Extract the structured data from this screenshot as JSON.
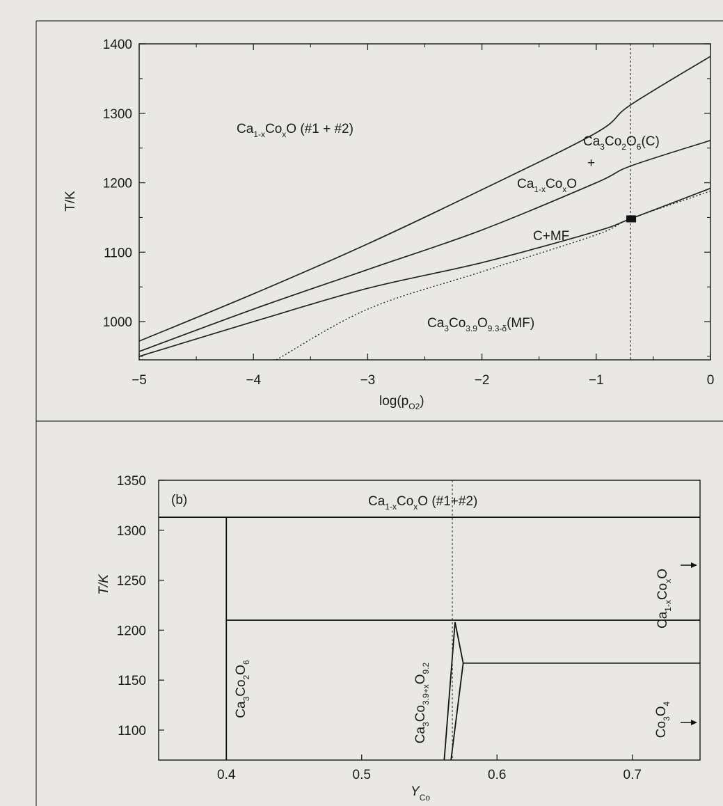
{
  "chart_data": [
    {
      "type": "line",
      "panel": "a",
      "xlabel": "log(p",
      "xlabel_sub": "O2",
      "xlabel_end": ")",
      "ylabel": "T/K",
      "xlim": [
        -5,
        0
      ],
      "ylim": [
        945,
        1400
      ],
      "xticks": [
        -5,
        -4,
        -3,
        -2,
        -1,
        0
      ],
      "yticks": [
        1000,
        1100,
        1200,
        1300,
        1400
      ],
      "xtick_labels": [
        "−5",
        "−4",
        "−3",
        "−2",
        "−1",
        "0"
      ],
      "ytick_labels": [
        "1000",
        "1100",
        "1200",
        "1300",
        "1400"
      ],
      "grid": false,
      "series": [
        {
          "style": "solid",
          "x": [
            -5,
            -4,
            -3,
            -2,
            -1,
            -0.7,
            0
          ],
          "y": [
            972,
            1040,
            1112,
            1190,
            1272,
            1312,
            1382
          ]
        },
        {
          "style": "solid",
          "x": [
            -5,
            -4,
            -3,
            -2,
            -1,
            -0.7,
            0
          ],
          "y": [
            957,
            1018,
            1075,
            1132,
            1200,
            1224,
            1261
          ]
        },
        {
          "style": "solid",
          "x": [
            -5,
            -4,
            -3,
            -2,
            -1,
            -0.7,
            0
          ],
          "y": [
            950,
            1000,
            1048,
            1085,
            1130,
            1148,
            1192
          ]
        },
        {
          "style": "dotted",
          "x": [
            -3.8,
            -3,
            -2,
            -1,
            -0.7,
            0
          ],
          "y": [
            945,
            1018,
            1072,
            1125,
            1148,
            1188
          ]
        }
      ],
      "vline": {
        "x": -0.7,
        "style": "dashed"
      },
      "marker": {
        "x": -0.7,
        "y": 1148,
        "shape": "square"
      },
      "annotations": [
        {
          "id": "ann1",
          "parts": [
            [
              "Ca",
              ""
            ],
            [
              "1-x",
              "sub"
            ],
            [
              "Co",
              ""
            ],
            [
              "x",
              "sub"
            ],
            [
              "O (#1 + #2)",
              ""
            ]
          ]
        },
        {
          "id": "ann2",
          "parts": [
            [
              "Ca",
              ""
            ],
            [
              "3",
              "sub"
            ],
            [
              "Co",
              ""
            ],
            [
              "2",
              "sub"
            ],
            [
              "O",
              ""
            ],
            [
              "6",
              "sub"
            ],
            [
              "(C)",
              ""
            ]
          ]
        },
        {
          "id": "ann3",
          "parts": [
            [
              "+",
              ""
            ]
          ]
        },
        {
          "id": "ann4",
          "parts": [
            [
              "Ca",
              ""
            ],
            [
              "1-x",
              "sub"
            ],
            [
              "Co",
              ""
            ],
            [
              "x",
              "sub"
            ],
            [
              "O",
              ""
            ]
          ]
        },
        {
          "id": "ann5",
          "parts": [
            [
              "C+MF",
              ""
            ]
          ]
        },
        {
          "id": "ann6",
          "parts": [
            [
              "Ca",
              ""
            ],
            [
              "3",
              "sub"
            ],
            [
              "Co",
              ""
            ],
            [
              "3.9",
              "sub"
            ],
            [
              "O",
              ""
            ],
            [
              "9.3-δ",
              "sub"
            ],
            [
              "(MF)",
              ""
            ]
          ]
        }
      ]
    },
    {
      "type": "line",
      "panel": "b",
      "panel_label": "(b)",
      "xlabel": "Y",
      "xlabel_sub": "Co",
      "ylabel": "T/K",
      "xlim": [
        0.35,
        0.75
      ],
      "ylim": [
        1070,
        1350
      ],
      "xticks": [
        0.4,
        0.5,
        0.6,
        0.7
      ],
      "yticks": [
        1100,
        1150,
        1200,
        1250,
        1300,
        1350
      ],
      "xtick_labels": [
        "0.4",
        "0.5",
        "0.6",
        "0.7"
      ],
      "ytick_labels": [
        "1100",
        "1150",
        "1200",
        "1250",
        "1300",
        "1350"
      ],
      "grid": false,
      "segments": [
        {
          "x": [
            0.35,
            0.75
          ],
          "y": [
            1313,
            1313
          ]
        },
        {
          "x": [
            0.4,
            0.4
          ],
          "y": [
            1070,
            1313
          ]
        },
        {
          "x": [
            0.4,
            0.75
          ],
          "y": [
            1210,
            1210
          ]
        },
        {
          "x": [
            0.575,
            0.75
          ],
          "y": [
            1167,
            1167
          ]
        },
        {
          "x": [
            0.561,
            0.569,
            0.575,
            0.566
          ],
          "y": [
            1070,
            1208,
            1167,
            1070
          ]
        }
      ],
      "vline": {
        "x": 0.567,
        "style": "dashed"
      },
      "annotations": [
        {
          "id": "b1",
          "parts": [
            [
              "Ca",
              ""
            ],
            [
              "1-x",
              "sub"
            ],
            [
              "Co",
              ""
            ],
            [
              "x",
              "sub"
            ],
            [
              "O (#1+#2)",
              ""
            ]
          ]
        },
        {
          "id": "b2",
          "parts": [
            [
              "CaCo",
              ""
            ],
            [
              "2",
              "sub"
            ],
            [
              "O",
              ""
            ],
            [
              "6",
              "sub"
            ]
          ],
          "prefix": "Ca",
          "prefix_sub": "3"
        },
        {
          "id": "b3",
          "parts": [
            [
              "Ca",
              ""
            ],
            [
              "3",
              "sub"
            ],
            [
              "Co",
              ""
            ],
            [
              "3.9+x",
              "sub"
            ],
            [
              "O",
              ""
            ],
            [
              "9.2",
              "sub"
            ]
          ]
        },
        {
          "id": "b4",
          "parts": [
            [
              "Ca",
              ""
            ],
            [
              "1-x",
              "sub"
            ],
            [
              "Co",
              ""
            ],
            [
              "x",
              "sub"
            ],
            [
              "O",
              ""
            ]
          ]
        },
        {
          "id": "b5",
          "parts": [
            [
              "Co",
              ""
            ],
            [
              "3",
              "sub"
            ],
            [
              "O",
              ""
            ],
            [
              "4",
              "sub"
            ]
          ]
        }
      ]
    }
  ]
}
